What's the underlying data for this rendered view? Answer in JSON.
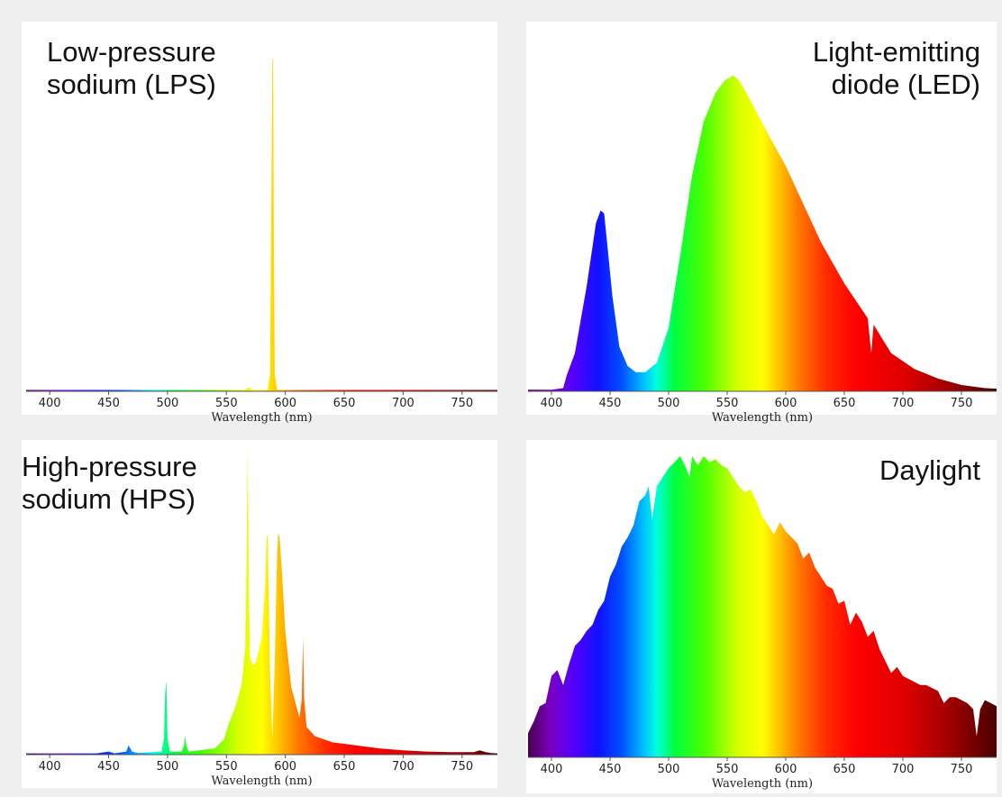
{
  "chart_data": [
    {
      "id": "lps",
      "type": "area",
      "title": "Low-pressure\nsodium (LPS)",
      "title_align": "left",
      "xlabel": "Wavelength (nm)",
      "xlim": [
        380,
        780
      ],
      "ylim": [
        0,
        1
      ],
      "x_ticks": [
        400,
        450,
        500,
        550,
        600,
        650,
        700,
        750
      ],
      "fill": "wavelength-spectrum",
      "series": [
        {
          "x": [
            380,
            560,
            566,
            569,
            572,
            585,
            587,
            588,
            589,
            589.6,
            590.2,
            591,
            593,
            600,
            780
          ],
          "y": [
            0.004,
            0.004,
            0.004,
            0.012,
            0.004,
            0.004,
            0.05,
            0.5,
            0.99,
            0.99,
            0.5,
            0.05,
            0.004,
            0.004,
            0.004
          ]
        }
      ]
    },
    {
      "id": "led",
      "type": "area",
      "title": "Light-emitting\ndiode (LED)",
      "title_align": "right",
      "xlabel": "Wavelength (nm)",
      "xlim": [
        380,
        780
      ],
      "ylim": [
        0,
        1
      ],
      "x_ticks": [
        400,
        450,
        500,
        550,
        600,
        650,
        700,
        750
      ],
      "fill": "wavelength-spectrum",
      "series": [
        {
          "x": [
            380,
            400,
            410,
            413,
            420,
            430,
            438,
            442,
            445,
            448,
            452,
            458,
            465,
            472,
            480,
            490,
            500,
            510,
            520,
            530,
            540,
            548,
            555,
            560,
            565,
            575,
            585,
            600,
            615,
            630,
            650,
            670,
            673,
            675,
            690,
            710,
            730,
            750,
            770,
            780
          ],
          "y": [
            0.005,
            0.005,
            0.01,
            0.05,
            0.12,
            0.33,
            0.53,
            0.57,
            0.56,
            0.45,
            0.3,
            0.14,
            0.08,
            0.06,
            0.06,
            0.09,
            0.2,
            0.43,
            0.68,
            0.85,
            0.94,
            0.98,
            0.995,
            0.98,
            0.95,
            0.88,
            0.81,
            0.71,
            0.59,
            0.47,
            0.34,
            0.23,
            0.12,
            0.21,
            0.12,
            0.07,
            0.04,
            0.02,
            0.01,
            0.008
          ]
        }
      ]
    },
    {
      "id": "hps",
      "type": "area",
      "title": "High-pressure\nsodium (HPS)",
      "title_align": "left",
      "xlabel": "Wavelength (nm)",
      "xlim": [
        380,
        780
      ],
      "ylim": [
        0,
        1
      ],
      "x_ticks": [
        400,
        450,
        500,
        550,
        600,
        650,
        700,
        750
      ],
      "fill": "wavelength-spectrum",
      "series": [
        {
          "x": [
            380,
            440,
            450,
            455,
            465,
            467,
            470,
            475,
            495,
            497,
            498,
            499,
            500,
            502,
            512,
            514,
            515,
            516,
            518,
            540,
            548,
            552,
            558,
            563,
            566,
            567,
            568,
            569,
            570,
            572,
            575,
            580,
            583,
            584,
            585,
            586,
            587,
            589,
            591,
            593,
            594,
            595,
            597,
            600,
            605,
            612,
            614,
            615,
            616,
            618,
            625,
            640,
            660,
            680,
            700,
            720,
            740,
            760,
            765,
            770,
            775,
            780
          ],
          "y": [
            0.004,
            0.004,
            0.01,
            0.004,
            0.01,
            0.03,
            0.01,
            0.005,
            0.01,
            0.05,
            0.2,
            0.24,
            0.05,
            0.01,
            0.01,
            0.03,
            0.06,
            0.03,
            0.01,
            0.02,
            0.05,
            0.1,
            0.16,
            0.23,
            0.35,
            0.6,
            1.0,
            0.55,
            0.32,
            0.29,
            0.3,
            0.38,
            0.55,
            0.7,
            0.72,
            0.5,
            0.27,
            0.05,
            0.3,
            0.65,
            0.72,
            0.71,
            0.6,
            0.4,
            0.22,
            0.12,
            0.18,
            0.38,
            0.18,
            0.09,
            0.06,
            0.04,
            0.03,
            0.02,
            0.014,
            0.01,
            0.008,
            0.008,
            0.014,
            0.008,
            0.005,
            0.004
          ]
        }
      ]
    },
    {
      "id": "daylight",
      "type": "area",
      "title": "Daylight",
      "title_align": "right",
      "xlabel": "Wavelength (nm)",
      "xlim": [
        380,
        780
      ],
      "ylim": [
        0,
        1
      ],
      "x_ticks": [
        400,
        450,
        500,
        550,
        600,
        650,
        700,
        750
      ],
      "fill": "wavelength-spectrum",
      "series": [
        {
          "x": [
            380,
            385,
            390,
            395,
            400,
            405,
            410,
            415,
            420,
            425,
            430,
            435,
            440,
            445,
            450,
            455,
            460,
            465,
            470,
            475,
            480,
            483,
            486,
            490,
            495,
            500,
            505,
            510,
            515,
            518,
            520,
            525,
            530,
            535,
            540,
            545,
            550,
            555,
            560,
            565,
            570,
            575,
            580,
            585,
            590,
            595,
            600,
            605,
            610,
            615,
            620,
            625,
            630,
            635,
            640,
            645,
            650,
            655,
            660,
            665,
            670,
            675,
            680,
            685,
            690,
            695,
            700,
            705,
            710,
            715,
            720,
            725,
            730,
            735,
            740,
            745,
            750,
            755,
            760,
            763,
            766,
            770,
            775,
            780
          ],
          "y": [
            0.08,
            0.12,
            0.17,
            0.18,
            0.27,
            0.29,
            0.24,
            0.31,
            0.37,
            0.39,
            0.42,
            0.44,
            0.49,
            0.52,
            0.6,
            0.64,
            0.7,
            0.73,
            0.77,
            0.85,
            0.87,
            0.9,
            0.79,
            0.9,
            0.93,
            0.96,
            0.98,
            1.0,
            0.96,
            0.93,
            1.0,
            0.97,
            1.0,
            0.98,
            0.99,
            0.97,
            0.96,
            0.93,
            0.9,
            0.88,
            0.89,
            0.85,
            0.8,
            0.77,
            0.74,
            0.78,
            0.75,
            0.73,
            0.71,
            0.66,
            0.68,
            0.63,
            0.6,
            0.57,
            0.56,
            0.51,
            0.52,
            0.44,
            0.48,
            0.45,
            0.4,
            0.42,
            0.36,
            0.32,
            0.28,
            0.3,
            0.27,
            0.26,
            0.25,
            0.24,
            0.24,
            0.23,
            0.22,
            0.18,
            0.2,
            0.2,
            0.19,
            0.18,
            0.16,
            0.07,
            0.16,
            0.19,
            0.18,
            0.17
          ]
        }
      ]
    }
  ]
}
